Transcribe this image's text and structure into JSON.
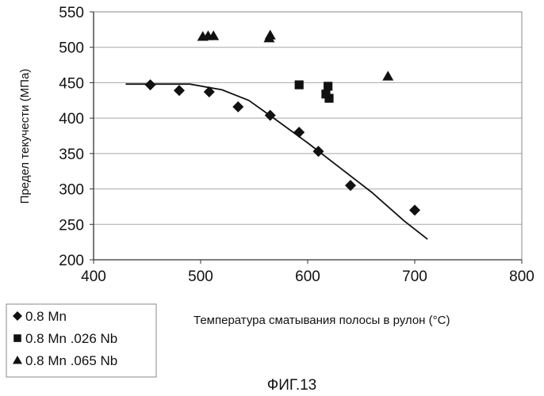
{
  "chart_data": {
    "type": "scatter",
    "title": "",
    "xlabel": "Температура сматывания полосы в рулон (°C)",
    "ylabel": "Предел текучести (МПа)",
    "xlim": [
      400,
      800
    ],
    "ylim": [
      200,
      550
    ],
    "xticks": [
      400,
      500,
      600,
      700,
      800
    ],
    "yticks": [
      200,
      250,
      300,
      350,
      400,
      450,
      500,
      550
    ],
    "grid": "horizontal",
    "legend_position": "bottom-left",
    "series": [
      {
        "name": "0.8 Mn",
        "marker": "diamond",
        "color": "#111111",
        "points": [
          [
            453,
            447
          ],
          [
            480,
            439
          ],
          [
            508,
            437
          ],
          [
            535,
            416
          ],
          [
            565,
            404
          ],
          [
            592,
            380
          ],
          [
            610,
            353
          ],
          [
            640,
            305
          ],
          [
            700,
            270
          ]
        ]
      },
      {
        "name": "0.8 Mn .026 Nb",
        "marker": "square",
        "color": "#111111",
        "points": [
          [
            592,
            447
          ],
          [
            617,
            434
          ],
          [
            619,
            445
          ],
          [
            620,
            428
          ]
        ]
      },
      {
        "name": "0.8 Mn .065 Nb",
        "marker": "triangle",
        "color": "#111111",
        "points": [
          [
            502,
            515
          ],
          [
            507,
            516
          ],
          [
            512,
            516
          ],
          [
            564,
            513
          ],
          [
            565,
            517
          ],
          [
            675,
            459
          ]
        ]
      }
    ],
    "trend_line": {
      "color": "#111111",
      "points": [
        [
          430,
          448
        ],
        [
          490,
          448
        ],
        [
          520,
          440
        ],
        [
          545,
          425
        ],
        [
          570,
          398
        ],
        [
          600,
          365
        ],
        [
          630,
          330
        ],
        [
          660,
          295
        ],
        [
          690,
          255
        ],
        [
          712,
          229
        ]
      ]
    }
  },
  "caption": "ФИГ.13"
}
